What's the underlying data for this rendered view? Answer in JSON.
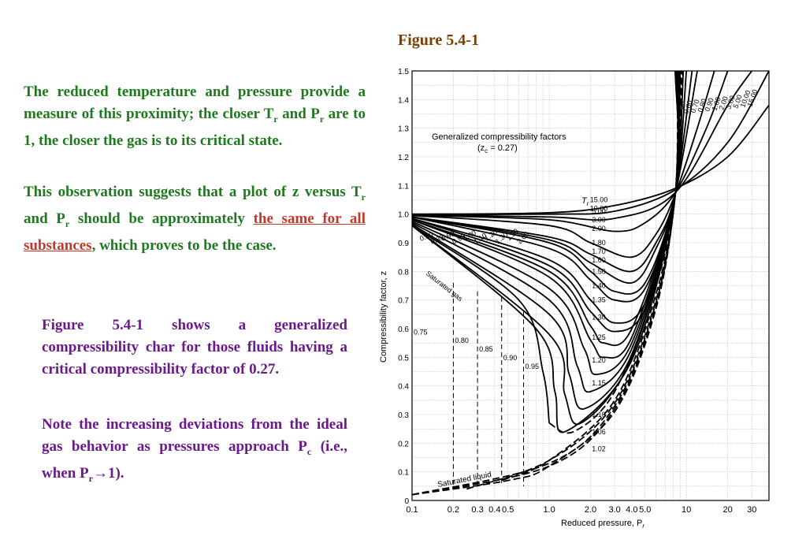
{
  "figure_title": "Figure 5.4-1",
  "p1": {
    "a": "The reduced temperature and pressure provide a measure of this proximity; the closer T",
    "a_sub": "r",
    "b": " and P",
    "b_sub": "r",
    "c": " are to 1, the closer the gas is to its critical state."
  },
  "p2": {
    "a": "This observation suggests that a plot of z versus T",
    "a_sub": "r",
    "b": " and P",
    "b_sub": "r",
    "c": " should be approximately ",
    "highlight": "the same for all substances",
    "d": ", which proves to be the case."
  },
  "p3": "Figure 5.4-1 shows a generalized compressibility char for those fluids having a critical compressibility factor of 0.27.",
  "p4": {
    "a": "Note the increasing deviations from the ideal gas behavior as pressures approach P",
    "a_sub": "c",
    "b": " (i.e., when P",
    "b_sub": "r",
    "c": "→1)."
  },
  "chart_data": {
    "type": "line",
    "title": "Generalized compressibility factors",
    "subtitle": "(z",
    "subtitle_sub": "c",
    "subtitle_end": " = 0.27)",
    "xlabel": "Reduced pressure, P",
    "xlabel_sub": "r",
    "ylabel": "Compressibility factor, z",
    "x_scale": "log",
    "xlim": [
      0.1,
      40
    ],
    "ylim": [
      0,
      1.5
    ],
    "x_tick_labels": [
      "0.1",
      "0.2",
      "0.3",
      "0.4",
      "0.5",
      "1.0",
      "2.0",
      "3.0",
      "4.0",
      "5.0",
      "10",
      "20",
      "30"
    ],
    "y_tick_labels": [
      "0",
      "0.1",
      "0.2",
      "0.3",
      "0.4",
      "0.5",
      "0.6",
      "0.7",
      "0.8",
      "0.9",
      "1.0",
      "1.1",
      "1.2",
      "1.3",
      "1.4",
      "1.5"
    ],
    "grid": true,
    "tr_symbol": "T",
    "tr_sub": "r",
    "saturated_gas_label": "Saturated gas",
    "saturated_liquid_label": "Saturated liquid",
    "vapor_isotherms": [
      {
        "name": "15.00",
        "points": [
          [
            0.1,
            1.0
          ],
          [
            1,
            1.005
          ],
          [
            3,
            1.03
          ],
          [
            8.3,
            1.09
          ],
          [
            20,
            1.2
          ],
          [
            40,
            1.38
          ]
        ]
      },
      {
        "name": "10.00",
        "points": [
          [
            0.1,
            0.999
          ],
          [
            1,
            1.0
          ],
          [
            3,
            1.01
          ],
          [
            8.3,
            1.085
          ],
          [
            20,
            1.25
          ],
          [
            40,
            1.5
          ]
        ]
      },
      {
        "name": "5.00",
        "points": [
          [
            0.1,
            0.998
          ],
          [
            1,
            0.99
          ],
          [
            3,
            0.985
          ],
          [
            8.3,
            1.075
          ],
          [
            20,
            1.38
          ],
          [
            30,
            1.5
          ]
        ]
      },
      {
        "name": "3.00",
        "points": [
          [
            0.1,
            0.996
          ],
          [
            1,
            0.98
          ],
          [
            3,
            0.94
          ],
          [
            5,
            0.97
          ],
          [
            8.3,
            1.075
          ],
          [
            14,
            1.3
          ],
          [
            20,
            1.5
          ]
        ]
      },
      {
        "name": "2.00",
        "points": [
          [
            0.1,
            0.995
          ],
          [
            1,
            0.96
          ],
          [
            2,
            0.9
          ],
          [
            4,
            0.85
          ],
          [
            6,
            0.93
          ],
          [
            8.3,
            1.07
          ],
          [
            12,
            1.3
          ],
          [
            16,
            1.5
          ]
        ]
      },
      {
        "name": "1.80",
        "points": [
          [
            0.1,
            0.99
          ],
          [
            1,
            0.92
          ],
          [
            2,
            0.86
          ],
          [
            4,
            0.8
          ],
          [
            6,
            0.9
          ],
          [
            8.3,
            1.07
          ],
          [
            12,
            1.5
          ]
        ]
      },
      {
        "name": "1.70",
        "points": [
          [
            0.1,
            0.99
          ],
          [
            1,
            0.91
          ],
          [
            2,
            0.83
          ],
          [
            4,
            0.76
          ],
          [
            6,
            0.88
          ],
          [
            8.3,
            1.07
          ],
          [
            11,
            1.5
          ]
        ]
      },
      {
        "name": "1.60",
        "points": [
          [
            0.1,
            0.99
          ],
          [
            1,
            0.9
          ],
          [
            2,
            0.8
          ],
          [
            3,
            0.73
          ],
          [
            5,
            0.76
          ],
          [
            8.3,
            1.07
          ],
          [
            10,
            1.5
          ]
        ]
      },
      {
        "name": "1.50",
        "points": [
          [
            0.1,
            0.99
          ],
          [
            1,
            0.88
          ],
          [
            2,
            0.77
          ],
          [
            3,
            0.7
          ],
          [
            5,
            0.74
          ],
          [
            8.3,
            1.07
          ],
          [
            9.5,
            1.5
          ]
        ]
      },
      {
        "name": "1.40",
        "points": [
          [
            0.1,
            0.985
          ],
          [
            1,
            0.84
          ],
          [
            2,
            0.7
          ],
          [
            3,
            0.62
          ],
          [
            5,
            0.69
          ],
          [
            8.3,
            1.07
          ],
          [
            9,
            1.5
          ]
        ]
      },
      {
        "name": "1.35",
        "points": [
          [
            0.1,
            0.985
          ],
          [
            1,
            0.82
          ],
          [
            2,
            0.66
          ],
          [
            3,
            0.59
          ],
          [
            5,
            0.67
          ],
          [
            8.3,
            1.07
          ],
          [
            8.8,
            1.5
          ]
        ]
      },
      {
        "name": "1.30",
        "points": [
          [
            0.1,
            0.98
          ],
          [
            1,
            0.8
          ],
          [
            2,
            0.61
          ],
          [
            2.5,
            0.55
          ],
          [
            4,
            0.6
          ],
          [
            8.3,
            1.07
          ],
          [
            8.6,
            1.5
          ]
        ]
      },
      {
        "name": "1.25",
        "points": [
          [
            0.1,
            0.98
          ],
          [
            1,
            0.78
          ],
          [
            2,
            0.56
          ],
          [
            2.5,
            0.5
          ],
          [
            4,
            0.57
          ],
          [
            8.3,
            1.07
          ],
          [
            8.5,
            1.5
          ]
        ]
      },
      {
        "name": "1.20",
        "points": [
          [
            0.1,
            0.975
          ],
          [
            1,
            0.74
          ],
          [
            1.8,
            0.53
          ],
          [
            2.2,
            0.44
          ],
          [
            4,
            0.55
          ],
          [
            8.3,
            1.07
          ],
          [
            8.45,
            1.5
          ]
        ]
      },
      {
        "name": "1.15",
        "points": [
          [
            0.1,
            0.97
          ],
          [
            1,
            0.7
          ],
          [
            1.6,
            0.47
          ],
          [
            2,
            0.38
          ],
          [
            4,
            0.53
          ],
          [
            8.3,
            1.07
          ],
          [
            8.4,
            1.5
          ]
        ]
      },
      {
        "name": "1.10",
        "points": [
          [
            0.1,
            0.965
          ],
          [
            1,
            0.65
          ],
          [
            1.4,
            0.44
          ],
          [
            1.8,
            0.32
          ],
          [
            4,
            0.51
          ],
          [
            8.3,
            1.07
          ],
          [
            8.35,
            1.5
          ]
        ]
      },
      {
        "name": "1.06",
        "points": [
          [
            0.1,
            0.96
          ],
          [
            1,
            0.58
          ],
          [
            1.3,
            0.37
          ],
          [
            1.7,
            0.27
          ],
          [
            4,
            0.5
          ],
          [
            8.3,
            1.07
          ],
          [
            8.3,
            1.5
          ]
        ]
      },
      {
        "name": "1.02",
        "points": [
          [
            0.1,
            0.96
          ],
          [
            0.8,
            0.6
          ],
          [
            1.1,
            0.38
          ],
          [
            1.3,
            0.24
          ],
          [
            4,
            0.49
          ],
          [
            8.3,
            1.07
          ],
          [
            8.3,
            1.5
          ]
        ]
      },
      {
        "name": "1.00",
        "points": [
          [
            0.1,
            0.96
          ],
          [
            0.6,
            0.7
          ],
          [
            0.9,
            0.45
          ],
          [
            1.0,
            0.27
          ]
        ]
      }
    ],
    "liquid_isotherms": [
      {
        "name": "1.00",
        "points": [
          [
            1.0,
            0.27
          ],
          [
            1.5,
            0.24
          ],
          [
            3,
            0.38
          ],
          [
            6,
            0.75
          ],
          [
            8.3,
            1.07
          ],
          [
            8.6,
            1.5
          ]
        ]
      },
      {
        "name": "0.90",
        "points": [
          [
            0.45,
            0.07
          ],
          [
            1,
            0.14
          ],
          [
            3,
            0.35
          ],
          [
            6,
            0.72
          ],
          [
            8.3,
            1.07
          ],
          [
            8.7,
            1.5
          ]
        ]
      },
      {
        "name": "0.80",
        "points": [
          [
            0.25,
            0.04
          ],
          [
            1,
            0.14
          ],
          [
            3,
            0.34
          ],
          [
            6,
            0.7
          ],
          [
            8.3,
            1.07
          ],
          [
            8.8,
            1.5
          ]
        ]
      },
      {
        "name": "0.70",
        "points": [
          [
            0.1,
            0.02
          ],
          [
            1,
            0.13
          ],
          [
            3,
            0.33
          ],
          [
            6,
            0.69
          ],
          [
            8.3,
            1.07
          ],
          [
            9,
            1.5
          ]
        ]
      },
      {
        "name": "0.60",
        "points": [
          [
            0.1,
            0.02
          ],
          [
            1,
            0.12
          ],
          [
            3,
            0.32
          ],
          [
            6,
            0.68
          ],
          [
            8.3,
            1.07
          ],
          [
            9.2,
            1.5
          ]
        ]
      },
      {
        "name": "0.50",
        "points": [
          [
            0.1,
            0.02
          ],
          [
            0.5,
            0.07
          ],
          [
            1,
            0.12
          ],
          [
            3,
            0.31
          ],
          [
            6,
            0.67
          ],
          [
            8.3,
            1.07
          ],
          [
            9.4,
            1.5
          ]
        ]
      }
    ],
    "saturation_dashed": [
      {
        "name": "0.75",
        "x": 0.1,
        "z": 0.78
      },
      {
        "name": "0.80",
        "x": 0.2,
        "z": 0.76
      },
      {
        "name": "0.85",
        "x": 0.3,
        "z": 0.73
      },
      {
        "name": "0.90",
        "x": 0.45,
        "z": 0.71
      },
      {
        "name": "0.95",
        "x": 0.65,
        "z": 0.66
      }
    ],
    "gas_labels_left": [
      "0.80",
      "0.85",
      "0.90",
      "0.95",
      "1.00",
      "1.10",
      "1.20",
      "1.30",
      "1.50",
      "2.00"
    ],
    "high_pr_labels": [
      "0.50",
      "0.60",
      "0.70",
      "0.80",
      "0.90",
      "1.00",
      "2.00",
      "3.00",
      "5.00",
      "10.00",
      "15.00"
    ]
  }
}
